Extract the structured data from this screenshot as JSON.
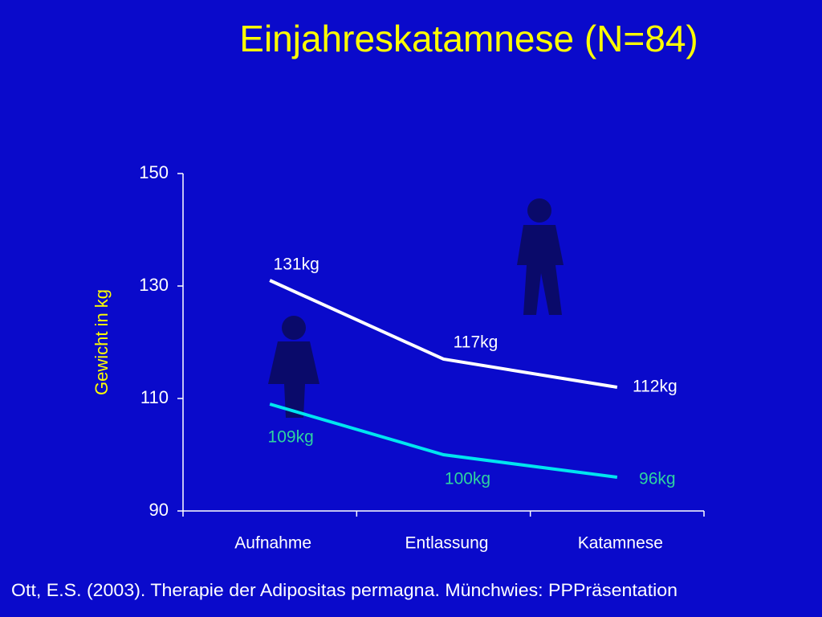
{
  "chart_data": {
    "type": "line",
    "title": "Einjahreskatamnese (N=84)",
    "y_label": "Gewicht in kg",
    "categories": [
      "Aufnahme",
      "Entlassung",
      "Katamnese"
    ],
    "ylim": [
      90,
      150
    ],
    "yticks": [
      90,
      110,
      130,
      150
    ],
    "series": [
      {
        "color": "#ffffff",
        "label_color": "#ffffff",
        "values": [
          131,
          117,
          112
        ],
        "value_labels": [
          "131kg",
          "117kg",
          "112kg"
        ]
      },
      {
        "color": "#00e5f0",
        "label_color": "#2ed3a0",
        "values": [
          109,
          100,
          96
        ],
        "value_labels": [
          "109kg",
          "100kg",
          "96kg"
        ]
      }
    ],
    "source": "Ott, E.S. (2003). Therapie der Adipositas permagna. Münchwies: PPPräsentation"
  }
}
